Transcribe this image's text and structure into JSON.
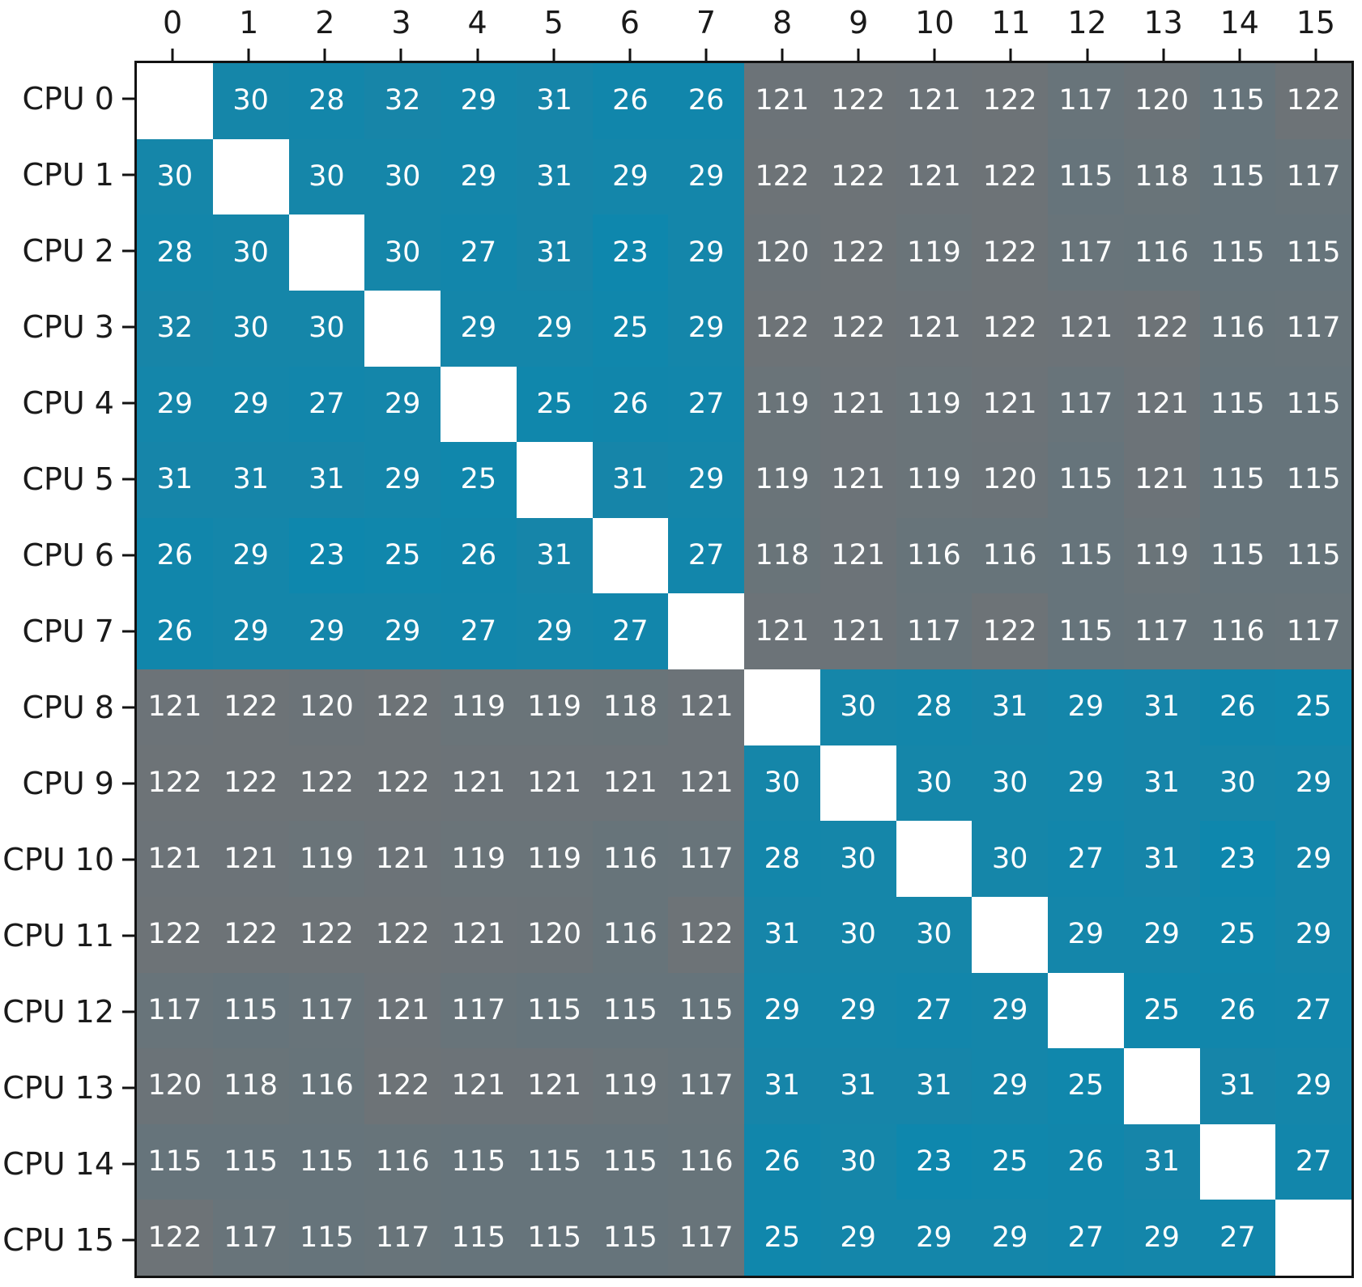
{
  "chart_data": {
    "type": "heatmap",
    "title": "",
    "xlabel": "",
    "ylabel": "",
    "legend_position": "none",
    "grid": false,
    "row_labels": [
      "CPU 0",
      "CPU 1",
      "CPU 2",
      "CPU 3",
      "CPU 4",
      "CPU 5",
      "CPU 6",
      "CPU 7",
      "CPU 8",
      "CPU 9",
      "CPU 10",
      "CPU 11",
      "CPU 12",
      "CPU 13",
      "CPU 14",
      "CPU 15"
    ],
    "col_labels": [
      "0",
      "1",
      "2",
      "3",
      "4",
      "5",
      "6",
      "7",
      "8",
      "9",
      "10",
      "11",
      "12",
      "13",
      "14",
      "15"
    ],
    "values": [
      [
        null,
        30,
        28,
        32,
        29,
        31,
        26,
        26,
        121,
        122,
        121,
        122,
        117,
        120,
        115,
        122
      ],
      [
        30,
        null,
        30,
        30,
        29,
        31,
        29,
        29,
        122,
        122,
        121,
        122,
        115,
        118,
        115,
        117
      ],
      [
        28,
        30,
        null,
        30,
        27,
        31,
        23,
        29,
        120,
        122,
        119,
        122,
        117,
        116,
        115,
        115
      ],
      [
        32,
        30,
        30,
        null,
        29,
        29,
        25,
        29,
        122,
        122,
        121,
        122,
        121,
        122,
        116,
        117
      ],
      [
        29,
        29,
        27,
        29,
        null,
        25,
        26,
        27,
        119,
        121,
        119,
        121,
        117,
        121,
        115,
        115
      ],
      [
        31,
        31,
        31,
        29,
        25,
        null,
        31,
        29,
        119,
        121,
        119,
        120,
        115,
        121,
        115,
        115
      ],
      [
        26,
        29,
        23,
        25,
        26,
        31,
        null,
        27,
        118,
        121,
        116,
        116,
        115,
        119,
        115,
        115
      ],
      [
        26,
        29,
        29,
        29,
        27,
        29,
        27,
        null,
        121,
        121,
        117,
        122,
        115,
        117,
        116,
        117
      ],
      [
        121,
        122,
        120,
        122,
        119,
        119,
        118,
        121,
        null,
        30,
        28,
        31,
        29,
        31,
        26,
        25
      ],
      [
        122,
        122,
        122,
        122,
        121,
        121,
        121,
        121,
        30,
        null,
        30,
        30,
        29,
        31,
        30,
        29
      ],
      [
        121,
        121,
        119,
        121,
        119,
        119,
        116,
        117,
        28,
        30,
        null,
        30,
        27,
        31,
        23,
        29
      ],
      [
        122,
        122,
        122,
        122,
        121,
        120,
        116,
        122,
        31,
        30,
        30,
        null,
        29,
        29,
        25,
        29
      ],
      [
        117,
        115,
        117,
        121,
        117,
        115,
        115,
        115,
        29,
        29,
        27,
        29,
        null,
        25,
        26,
        27
      ],
      [
        120,
        118,
        116,
        122,
        121,
        121,
        119,
        117,
        31,
        31,
        31,
        29,
        25,
        null,
        31,
        29
      ],
      [
        115,
        115,
        115,
        116,
        115,
        115,
        115,
        116,
        26,
        30,
        23,
        25,
        26,
        31,
        null,
        27
      ],
      [
        122,
        117,
        115,
        117,
        115,
        115,
        115,
        117,
        25,
        29,
        29,
        29,
        27,
        29,
        27,
        null
      ]
    ],
    "value_min": 23,
    "value_max": 122,
    "colors": {
      "low": "#0E87AD",
      "high": "#6D7377",
      "diagonal": "#FFFFFF",
      "cell_text": "#FFFFFF",
      "label_text": "#1A1A1A",
      "border": "#121212"
    }
  }
}
